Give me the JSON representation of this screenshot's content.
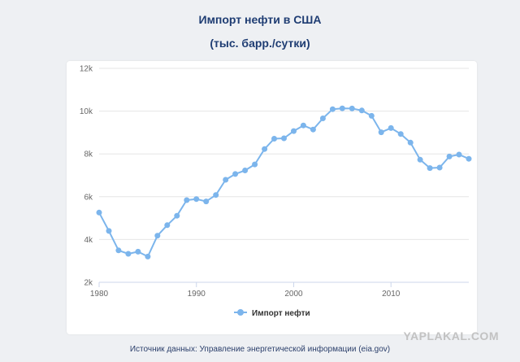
{
  "header": {
    "title": "Импорт нефти в США",
    "subtitle": "(тыс. барр./сутки)"
  },
  "source_text": "Источник данных: Управление энергетической информации (eia.gov)",
  "watermark": "YAPLAKAL.COM",
  "colors": {
    "background": "#eef0f3",
    "title": "#1f3d73",
    "series": "#7cb5ec",
    "grid": "#e6e6e6",
    "tick_label": "#666666"
  },
  "chart_data": {
    "type": "line",
    "title": "Импорт нефти в США",
    "subtitle": "(тыс. барр./сутки)",
    "xlabel": "",
    "ylabel": "",
    "xlim": [
      1980,
      2018
    ],
    "ylim": [
      2000,
      12000
    ],
    "x_ticks": [
      1980,
      1990,
      2000,
      2010
    ],
    "x_tick_labels": [
      "1980",
      "1990",
      "2000",
      "2010"
    ],
    "y_ticks": [
      2000,
      4000,
      6000,
      8000,
      10000,
      12000
    ],
    "y_tick_labels": [
      "2k",
      "4k",
      "6k",
      "8k",
      "10k",
      "12k"
    ],
    "grid": true,
    "legend_position": "bottom-center",
    "series": [
      {
        "name": "Импорт нефти",
        "color": "#7cb5ec",
        "x": [
          1980,
          1981,
          1982,
          1983,
          1984,
          1985,
          1986,
          1987,
          1988,
          1989,
          1990,
          1991,
          1992,
          1993,
          1994,
          1995,
          1996,
          1997,
          1998,
          1999,
          2000,
          2001,
          2002,
          2003,
          2004,
          2005,
          2006,
          2007,
          2008,
          2009,
          2010,
          2011,
          2012,
          2013,
          2014,
          2015,
          2016,
          2017,
          2018
        ],
        "values": [
          5260,
          4400,
          3490,
          3330,
          3430,
          3200,
          4180,
          4670,
          5110,
          5840,
          5890,
          5780,
          6080,
          6790,
          7060,
          7230,
          7510,
          8230,
          8710,
          8730,
          9070,
          9330,
          9140,
          9660,
          10090,
          10130,
          10120,
          10030,
          9780,
          9010,
          9210,
          8930,
          8530,
          7730,
          7340,
          7360,
          7880,
          7970,
          7770
        ]
      }
    ]
  }
}
